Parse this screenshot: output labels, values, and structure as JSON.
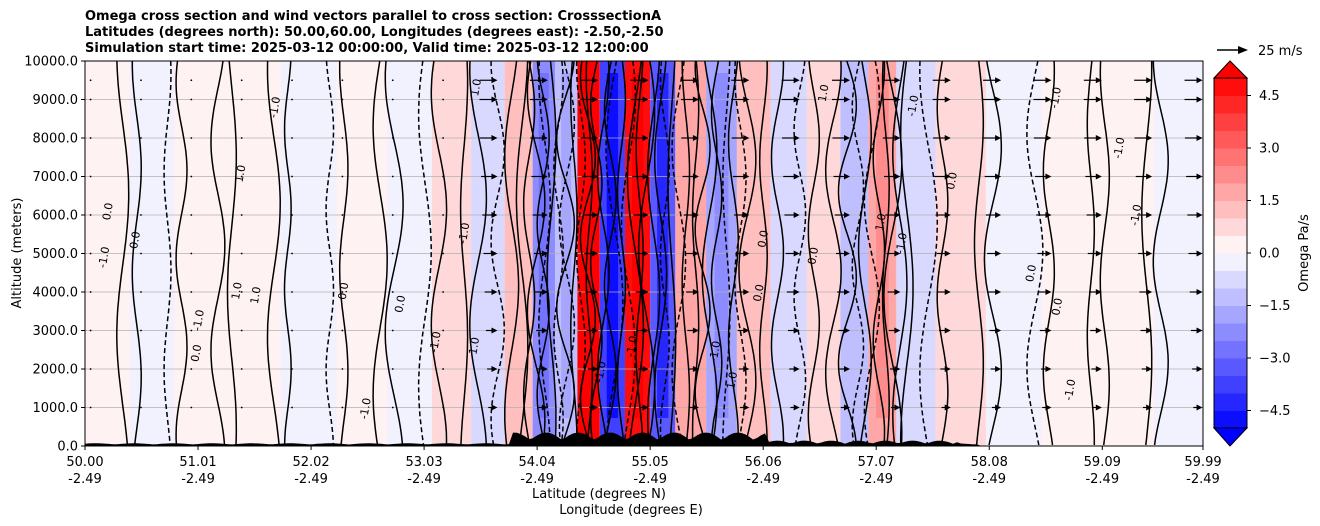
{
  "chart_data": {
    "type": "heatmap",
    "title_lines": [
      "Omega cross section and wind vectors parallel to cross section: CrosssectionA",
      "Latitudes (degrees north): 50.00,60.00, Longitudes (degrees east): -2.50,-2.50",
      "Simulation start time: 2025-03-12 00:00:00, Valid time: 2025-03-12 12:00:00"
    ],
    "ylabel": "Altitude (meters)",
    "xlabel_lines": [
      "Latitude (degrees N)",
      "Longitude (degrees E)"
    ],
    "y_ticks": [
      "0.0",
      "1000.0",
      "2000.0",
      "3000.0",
      "4000.0",
      "5000.0",
      "6000.0",
      "7000.0",
      "8000.0",
      "9000.0",
      "10000.0"
    ],
    "ylim": [
      0,
      10000
    ],
    "x_ticks": [
      {
        "lat": "50.00",
        "lon": "-2.49"
      },
      {
        "lat": "51.01",
        "lon": "-2.49"
      },
      {
        "lat": "52.02",
        "lon": "-2.49"
      },
      {
        "lat": "53.03",
        "lon": "-2.49"
      },
      {
        "lat": "54.04",
        "lon": "-2.49"
      },
      {
        "lat": "55.05",
        "lon": "-2.49"
      },
      {
        "lat": "56.06",
        "lon": "-2.49"
      },
      {
        "lat": "57.07",
        "lon": "-2.49"
      },
      {
        "lat": "58.08",
        "lon": "-2.49"
      },
      {
        "lat": "59.09",
        "lon": "-2.49"
      },
      {
        "lat": "59.99",
        "lon": "-2.49"
      }
    ],
    "xlim": [
      50.0,
      59.99
    ],
    "grid": "horizontal",
    "colorbar": {
      "label": "Omega Pa/s",
      "tick_labels": [
        "4.5",
        "3.0",
        "1.5",
        "0.0",
        "−1.5",
        "−3.0",
        "−4.5"
      ],
      "range": [
        -5.0,
        5.0
      ],
      "extend": "both",
      "colormap": "bwr"
    },
    "vector_key": {
      "label": "25 m/s"
    },
    "contour_labels": [
      "0.0",
      "-1.0",
      "1.0"
    ],
    "omega_columns": [
      {
        "lat": 50.2,
        "omega": 0.1
      },
      {
        "lat": 50.6,
        "omega": -0.2
      },
      {
        "lat": 51.0,
        "omega": 0.1
      },
      {
        "lat": 51.5,
        "omega": 0.3
      },
      {
        "lat": 52.0,
        "omega": -0.3
      },
      {
        "lat": 52.5,
        "omega": 0.4
      },
      {
        "lat": 52.9,
        "omega": -0.5
      },
      {
        "lat": 53.3,
        "omega": 0.6
      },
      {
        "lat": 53.6,
        "omega": -0.9
      },
      {
        "lat": 53.9,
        "omega": 1.2
      },
      {
        "lat": 54.1,
        "omega": -2.5
      },
      {
        "lat": 54.3,
        "omega": -1.5
      },
      {
        "lat": 54.5,
        "omega": 5.0
      },
      {
        "lat": 54.7,
        "omega": -4.0
      },
      {
        "lat": 54.95,
        "omega": 4.5
      },
      {
        "lat": 55.15,
        "omega": -3.5
      },
      {
        "lat": 55.4,
        "omega": 1.5
      },
      {
        "lat": 55.7,
        "omega": -2.0
      },
      {
        "lat": 55.95,
        "omega": 1.0
      },
      {
        "lat": 56.3,
        "omega": -0.8
      },
      {
        "lat": 56.6,
        "omega": 0.6
      },
      {
        "lat": 56.9,
        "omega": -1.2
      },
      {
        "lat": 57.1,
        "omega": 1.8
      },
      {
        "lat": 57.4,
        "omega": -0.6
      },
      {
        "lat": 57.8,
        "omega": 0.5
      },
      {
        "lat": 58.3,
        "omega": -0.3
      },
      {
        "lat": 58.8,
        "omega": 0.2
      },
      {
        "lat": 59.3,
        "omega": 0.3
      },
      {
        "lat": 59.8,
        "omega": -0.1
      }
    ],
    "wind_vector_rows_m": [
      1000,
      2000,
      3000,
      4000,
      5000,
      6000,
      7000,
      8000,
      9000,
      9500
    ]
  }
}
